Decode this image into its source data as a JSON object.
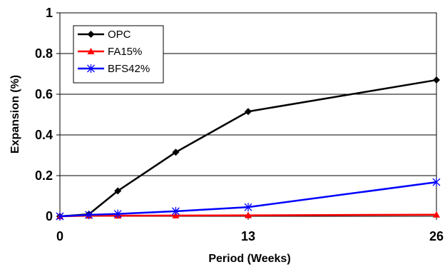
{
  "chart_data": {
    "type": "line",
    "xlabel": "Period (Weeks)",
    "ylabel": "Expansion (%)",
    "xlim": [
      0,
      26
    ],
    "ylim": [
      0,
      1
    ],
    "x_ticks": [
      "0",
      "13",
      "26"
    ],
    "y_ticks": [
      "0",
      "0.2",
      "0.4",
      "0.6",
      "0.8",
      "1"
    ],
    "grid": "horizontal",
    "legend_position": "top-left",
    "series": [
      {
        "name": "OPC",
        "color": "#000000",
        "marker": "diamond",
        "x": [
          0,
          2,
          4,
          8,
          13,
          26
        ],
        "y": [
          0.0,
          0.01,
          0.125,
          0.315,
          0.515,
          0.67
        ]
      },
      {
        "name": "FA15%",
        "color": "#ff0000",
        "marker": "triangle",
        "x": [
          0,
          2,
          4,
          8,
          13,
          26
        ],
        "y": [
          0.0,
          0.003,
          0.003,
          0.004,
          0.005,
          0.008
        ]
      },
      {
        "name": "BFS42%",
        "color": "#0000ff",
        "marker": "asterisk",
        "x": [
          0,
          2,
          4,
          8,
          13,
          26
        ],
        "y": [
          0.0,
          0.007,
          0.012,
          0.025,
          0.045,
          0.168
        ]
      }
    ]
  }
}
